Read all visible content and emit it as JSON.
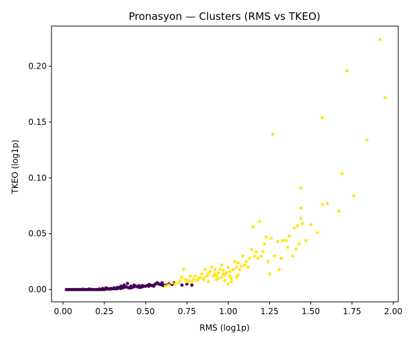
{
  "chart_data": {
    "type": "scatter",
    "title": "Pronasyon — Clusters (RMS vs TKEO)",
    "xlabel": "RMS (log1p)",
    "ylabel": "TKEO (log1p)",
    "xlim": [
      -0.07,
      2.03
    ],
    "ylim": [
      -0.011,
      0.236
    ],
    "grid": false,
    "xticks": [
      0.0,
      0.25,
      0.5,
      0.75,
      1.0,
      1.25,
      1.5,
      1.75,
      2.0
    ],
    "xtick_labels": [
      "0.00",
      "0.25",
      "0.50",
      "0.75",
      "1.00",
      "1.25",
      "1.50",
      "1.75",
      "2.00"
    ],
    "yticks": [
      0.0,
      0.05,
      0.1,
      0.15,
      0.2
    ],
    "ytick_labels": [
      "0.00",
      "0.05",
      "0.10",
      "0.15",
      "0.20"
    ],
    "colors": {
      "cluster0": "#440154",
      "cluster1": "#fde725"
    },
    "series": [
      {
        "color": "#440154",
        "points": [
          [
            0.02,
            0.0
          ],
          [
            0.03,
            0.0
          ],
          [
            0.04,
            0.0
          ],
          [
            0.05,
            0.0
          ],
          [
            0.06,
            0.0
          ],
          [
            0.07,
            0.0
          ],
          [
            0.08,
            0.0
          ],
          [
            0.09,
            0.0
          ],
          [
            0.1,
            0.0
          ],
          [
            0.11,
            0.0
          ],
          [
            0.12,
            0.0
          ],
          [
            0.13,
            0.0
          ],
          [
            0.14,
            0.0
          ],
          [
            0.15,
            0.0
          ],
          [
            0.16,
            0.0
          ],
          [
            0.17,
            0.0
          ],
          [
            0.18,
            0.0
          ],
          [
            0.19,
            0.0
          ],
          [
            0.2,
            0.0
          ],
          [
            0.21,
            0.0
          ],
          [
            0.22,
            0.0
          ],
          [
            0.23,
            0.0
          ],
          [
            0.24,
            0.0
          ],
          [
            0.25,
            0.0
          ],
          [
            0.26,
            0.0005
          ],
          [
            0.27,
            0.0005
          ],
          [
            0.28,
            0.0005
          ],
          [
            0.29,
            0.0005
          ],
          [
            0.3,
            0.0008
          ],
          [
            0.31,
            0.0008
          ],
          [
            0.32,
            0.0008
          ],
          [
            0.33,
            0.001
          ],
          [
            0.34,
            0.0015
          ],
          [
            0.35,
            0.001
          ],
          [
            0.36,
            0.0015
          ],
          [
            0.37,
            0.002
          ],
          [
            0.38,
            0.0025
          ],
          [
            0.39,
            0.002
          ],
          [
            0.4,
            0.0015
          ],
          [
            0.41,
            0.0015
          ],
          [
            0.42,
            0.002
          ],
          [
            0.43,
            0.0025
          ],
          [
            0.44,
            0.003
          ],
          [
            0.45,
            0.0025
          ],
          [
            0.46,
            0.002
          ],
          [
            0.47,
            0.002
          ],
          [
            0.48,
            0.0025
          ],
          [
            0.49,
            0.003
          ],
          [
            0.5,
            0.003
          ],
          [
            0.51,
            0.0035
          ],
          [
            0.52,
            0.003
          ],
          [
            0.53,
            0.004
          ],
          [
            0.54,
            0.0035
          ],
          [
            0.55,
            0.004
          ],
          [
            0.56,
            0.005
          ],
          [
            0.57,
            0.006
          ],
          [
            0.58,
            0.005
          ],
          [
            0.59,
            0.0045
          ],
          [
            0.6,
            0.004
          ],
          [
            0.61,
            0.0035
          ],
          [
            0.62,
            0.004
          ],
          [
            0.64,
            0.005
          ],
          [
            0.66,
            0.0045
          ],
          [
            0.67,
            0.006
          ],
          [
            0.72,
            0.004
          ],
          [
            0.75,
            0.005
          ],
          [
            0.78,
            0.004
          ],
          [
            0.35,
            0.003
          ],
          [
            0.39,
            0.0055
          ],
          [
            0.37,
            0.004
          ],
          [
            0.43,
            0.004
          ],
          [
            0.46,
            0.0035
          ],
          [
            0.33,
            0.002
          ],
          [
            0.29,
            0.001
          ],
          [
            0.26,
            0.0015
          ],
          [
            0.24,
            0.001
          ],
          [
            0.22,
            0.0005
          ],
          [
            0.55,
            0.003
          ],
          [
            0.6,
            0.006
          ],
          [
            0.52,
            0.0045
          ],
          [
            0.48,
            0.0035
          ],
          [
            0.41,
            0.003
          ],
          [
            0.36,
            0.0025
          ],
          [
            0.31,
            0.0015
          ],
          [
            0.27,
            0.001
          ],
          [
            0.16,
            0.0005
          ],
          [
            0.12,
            0.0003
          ]
        ]
      },
      {
        "color": "#fde725",
        "points": [
          [
            0.62,
            0.003
          ],
          [
            0.64,
            0.004
          ],
          [
            0.66,
            0.006
          ],
          [
            0.68,
            0.005
          ],
          [
            0.7,
            0.006
          ],
          [
            0.71,
            0.008
          ],
          [
            0.72,
            0.011
          ],
          [
            0.73,
            0.018
          ],
          [
            0.74,
            0.009
          ],
          [
            0.75,
            0.007
          ],
          [
            0.76,
            0.008
          ],
          [
            0.77,
            0.012
          ],
          [
            0.78,
            0.007
          ],
          [
            0.79,
            0.009
          ],
          [
            0.8,
            0.012
          ],
          [
            0.81,
            0.008
          ],
          [
            0.82,
            0.01
          ],
          [
            0.83,
            0.011
          ],
          [
            0.84,
            0.014
          ],
          [
            0.85,
            0.01
          ],
          [
            0.86,
            0.018
          ],
          [
            0.87,
            0.012
          ],
          [
            0.88,
            0.014
          ],
          [
            0.89,
            0.016
          ],
          [
            0.9,
            0.02
          ],
          [
            0.91,
            0.012
          ],
          [
            0.92,
            0.014
          ],
          [
            0.93,
            0.012
          ],
          [
            0.94,
            0.015
          ],
          [
            0.95,
            0.018
          ],
          [
            0.96,
            0.022
          ],
          [
            0.97,
            0.017
          ],
          [
            0.98,
            0.013
          ],
          [
            0.99,
            0.015
          ],
          [
            1.0,
            0.02
          ],
          [
            1.01,
            0.012
          ],
          [
            1.02,
            0.01
          ],
          [
            1.03,
            0.018
          ],
          [
            1.04,
            0.025
          ],
          [
            1.05,
            0.02
          ],
          [
            1.06,
            0.024
          ],
          [
            1.07,
            0.018
          ],
          [
            1.08,
            0.021
          ],
          [
            1.09,
            0.03
          ],
          [
            1.1,
            0.022
          ],
          [
            1.11,
            0.025
          ],
          [
            1.12,
            0.02
          ],
          [
            1.13,
            0.028
          ],
          [
            1.14,
            0.036
          ],
          [
            1.15,
            0.056
          ],
          [
            1.16,
            0.03
          ],
          [
            1.17,
            0.034
          ],
          [
            1.18,
            0.028
          ],
          [
            1.19,
            0.061
          ],
          [
            1.2,
            0.03
          ],
          [
            1.21,
            0.034
          ],
          [
            1.22,
            0.041
          ],
          [
            1.23,
            0.047
          ],
          [
            1.24,
            0.025
          ],
          [
            1.25,
            0.014
          ],
          [
            1.26,
            0.046
          ],
          [
            1.27,
            0.139
          ],
          [
            1.28,
            0.03
          ],
          [
            1.3,
            0.043
          ],
          [
            1.31,
            0.018
          ],
          [
            1.32,
            0.028
          ],
          [
            1.33,
            0.044
          ],
          [
            1.35,
            0.044
          ],
          [
            1.36,
            0.038
          ],
          [
            1.37,
            0.048
          ],
          [
            1.39,
            0.03
          ],
          [
            1.4,
            0.055
          ],
          [
            1.41,
            0.036
          ],
          [
            1.42,
            0.057
          ],
          [
            1.43,
            0.041
          ],
          [
            1.44,
            0.073
          ],
          [
            1.44,
            0.091
          ],
          [
            1.44,
            0.064
          ],
          [
            1.45,
            0.059
          ],
          [
            1.47,
            0.044
          ],
          [
            1.5,
            0.058
          ],
          [
            1.54,
            0.051
          ],
          [
            1.57,
            0.154
          ],
          [
            1.57,
            0.076
          ],
          [
            1.6,
            0.077
          ],
          [
            1.67,
            0.07
          ],
          [
            1.69,
            0.104
          ],
          [
            1.72,
            0.196
          ],
          [
            1.76,
            0.084
          ],
          [
            1.84,
            0.134
          ],
          [
            1.92,
            0.224
          ],
          [
            1.95,
            0.172
          ],
          [
            0.85,
            0.009
          ],
          [
            0.88,
            0.007
          ],
          [
            0.93,
            0.009
          ],
          [
            0.96,
            0.011
          ],
          [
            0.98,
            0.008
          ],
          [
            1.0,
            0.005
          ],
          [
            1.02,
            0.007
          ],
          [
            1.05,
            0.011
          ],
          [
            0.92,
            0.018
          ],
          [
            0.94,
            0.01
          ],
          [
            0.97,
            0.014
          ],
          [
            1.01,
            0.016
          ],
          [
            1.06,
            0.013
          ]
        ]
      }
    ]
  }
}
